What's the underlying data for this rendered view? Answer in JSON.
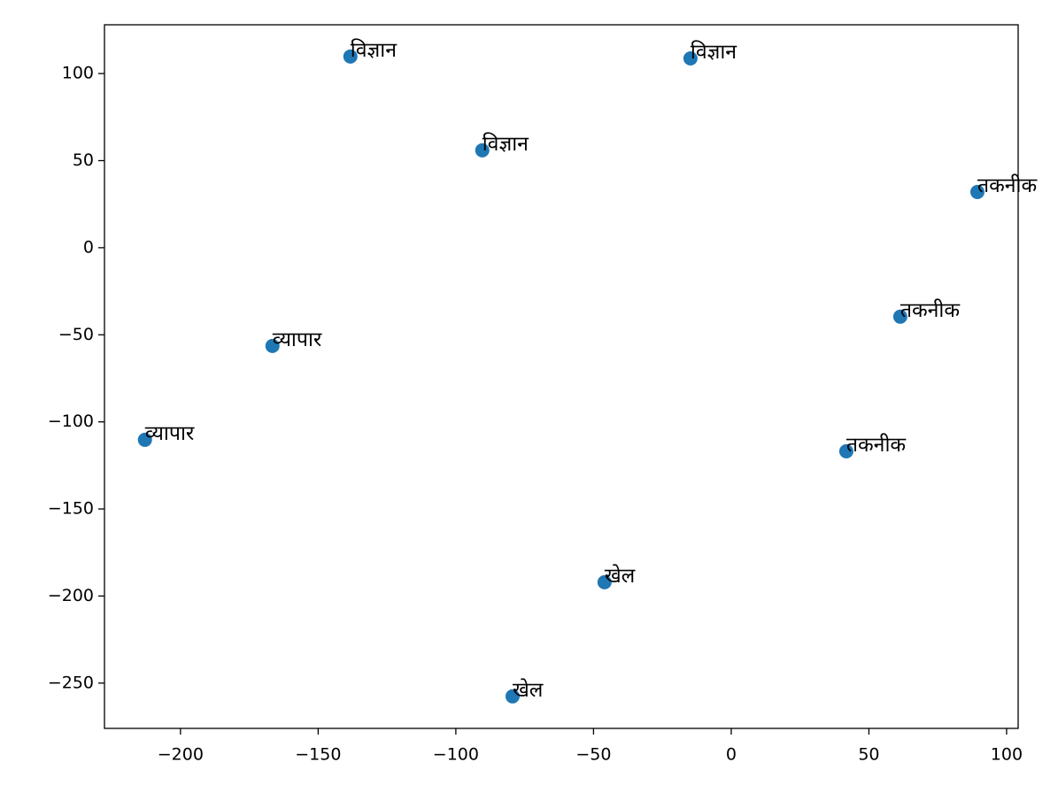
{
  "chart_data": {
    "type": "scatter",
    "x": [
      -138.3,
      -14.8,
      -90.4,
      89.4,
      61.4,
      41.8,
      -166.6,
      -212.9,
      -46.0,
      -79.4
    ],
    "values": [
      109.8,
      108.7,
      55.9,
      32.0,
      -39.6,
      -116.9,
      -56.4,
      -110.3,
      -192.1,
      -257.6
    ],
    "labels": [
      "विज्ञान",
      "विज्ञान",
      "विज्ञान",
      "तकनीक",
      "तकनीक",
      "तकनीक",
      "व्यापार",
      "व्यापार",
      "खेल",
      "खेल"
    ],
    "color": "#1f77b4",
    "xlim": [
      -227.6,
      104.2
    ],
    "ylim": [
      -276,
      128
    ],
    "xticks": [
      {
        "value": -200,
        "label": "−200"
      },
      {
        "value": -150,
        "label": "−150"
      },
      {
        "value": -100,
        "label": "−100"
      },
      {
        "value": -50,
        "label": "−50"
      },
      0,
      50,
      100
    ],
    "yticks": [
      {
        "value": -250,
        "label": "−250"
      },
      {
        "value": -200,
        "label": "−200"
      },
      {
        "value": -150,
        "label": "−150"
      },
      {
        "value": -100,
        "label": "−100"
      },
      {
        "value": -50,
        "label": "−50"
      },
      0,
      50,
      100
    ],
    "grid": false
  }
}
